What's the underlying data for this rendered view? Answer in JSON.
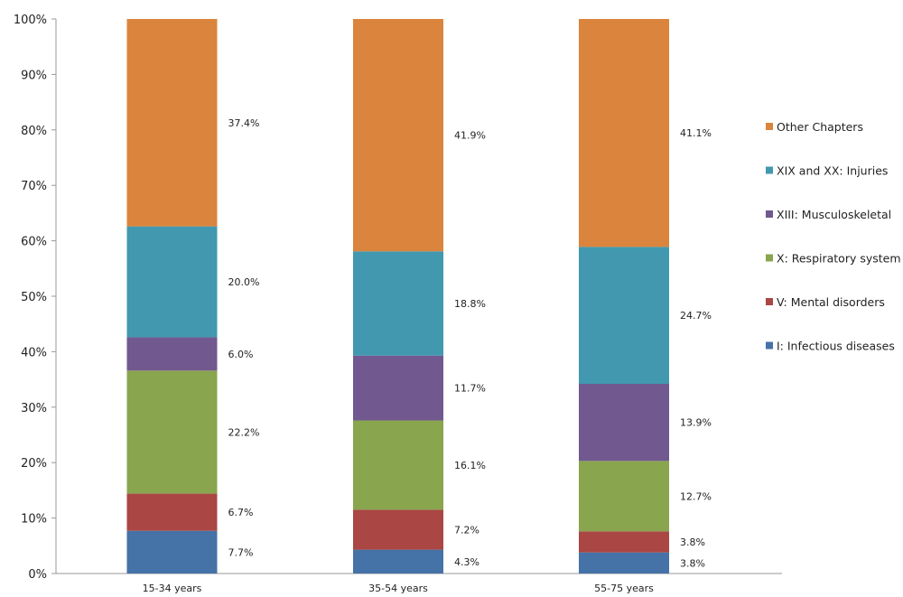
{
  "chart_data": {
    "type": "bar",
    "stacked": true,
    "percent": true,
    "categories": [
      "15-34 years",
      "35-54 years",
      "55-75 years"
    ],
    "series": [
      {
        "name": "I: Infectious diseases",
        "color": "#4572a7",
        "values": [
          7.7,
          4.3,
          3.8
        ],
        "labels": [
          "7.7%",
          "4.3%",
          "3.8%"
        ]
      },
      {
        "name": "V: Mental disorders",
        "color": "#aa4643",
        "values": [
          6.7,
          7.2,
          3.8
        ],
        "labels": [
          "6.7%",
          "7.2%",
          "3.8%"
        ]
      },
      {
        "name": "X: Respiratory system",
        "color": "#89a54e",
        "values": [
          22.2,
          16.1,
          12.7
        ],
        "labels": [
          "22.2%",
          "16.1%",
          "12.7%"
        ]
      },
      {
        "name": "XIII: Musculoskeletal",
        "color": "#71588f",
        "values": [
          6.0,
          11.7,
          13.9
        ],
        "labels": [
          "6.0%",
          "11.7%",
          "13.9%"
        ]
      },
      {
        "name": "XIX and XX: Injuries",
        "color": "#4198af",
        "values": [
          20.0,
          18.8,
          24.7
        ],
        "labels": [
          "20.0%",
          "18.8%",
          "24.7%"
        ]
      },
      {
        "name": "Other Chapters",
        "color": "#db843d",
        "values": [
          37.4,
          41.9,
          41.1
        ],
        "labels": [
          "37.4%",
          "41.9%",
          "41.1%"
        ]
      }
    ],
    "yticks": [
      "0%",
      "10%",
      "20%",
      "30%",
      "40%",
      "50%",
      "60%",
      "70%",
      "80%",
      "90%",
      "100%"
    ],
    "ylim": [
      0,
      100
    ],
    "grid": false,
    "legend": "right",
    "title": "",
    "xlabel": "",
    "ylabel": ""
  }
}
